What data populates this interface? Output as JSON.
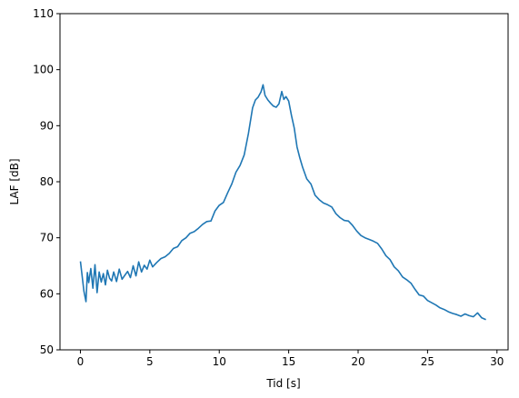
{
  "chart_data": {
    "type": "line",
    "title": "",
    "xlabel": "Tid [s]",
    "ylabel": "LAF [dB]",
    "xlim": [
      -1.47,
      30.8
    ],
    "ylim": [
      50,
      110
    ],
    "xticks": [
      0,
      5,
      10,
      15,
      20,
      25,
      30
    ],
    "yticks": [
      50,
      60,
      70,
      80,
      90,
      100,
      110
    ],
    "grid": false,
    "legend": "none",
    "series": [
      {
        "color": "#1f77b4",
        "x": [
          0.0,
          0.25,
          0.4,
          0.5,
          0.6,
          0.75,
          0.9,
          1.05,
          1.2,
          1.35,
          1.5,
          1.65,
          1.8,
          1.95,
          2.1,
          2.25,
          2.4,
          2.6,
          2.8,
          3.0,
          3.2,
          3.4,
          3.6,
          3.8,
          4.0,
          4.2,
          4.4,
          4.6,
          4.8,
          5.0,
          5.2,
          5.5,
          5.8,
          6.1,
          6.4,
          6.7,
          7.0,
          7.3,
          7.6,
          7.9,
          8.2,
          8.5,
          8.8,
          9.1,
          9.4,
          9.7,
          10.0,
          10.3,
          10.6,
          10.9,
          11.2,
          11.5,
          11.8,
          12.1,
          12.4,
          12.6,
          12.8,
          13.0,
          13.15,
          13.3,
          13.5,
          13.7,
          13.9,
          14.1,
          14.3,
          14.5,
          14.65,
          14.8,
          15.0,
          15.2,
          15.4,
          15.6,
          15.8,
          16.0,
          16.3,
          16.6,
          16.9,
          17.2,
          17.5,
          17.8,
          18.1,
          18.4,
          18.7,
          19.0,
          19.3,
          19.6,
          19.9,
          20.2,
          20.5,
          20.8,
          21.1,
          21.4,
          21.7,
          22.0,
          22.3,
          22.6,
          22.9,
          23.2,
          23.5,
          23.8,
          24.1,
          24.4,
          24.7,
          25.0,
          25.3,
          25.6,
          25.9,
          26.2,
          26.5,
          26.8,
          27.1,
          27.4,
          27.7,
          28.0,
          28.3,
          28.6,
          28.9,
          29.2
        ],
        "values": [
          65.8,
          60.5,
          58.6,
          63.8,
          62.0,
          64.5,
          61.0,
          65.2,
          60.2,
          63.9,
          62.1,
          63.6,
          61.6,
          64.2,
          62.8,
          62.3,
          63.9,
          62.2,
          64.4,
          62.6,
          63.3,
          64.0,
          62.9,
          65.0,
          63.2,
          65.7,
          63.9,
          65.1,
          64.4,
          66.0,
          64.8,
          65.6,
          66.3,
          66.6,
          67.2,
          68.1,
          68.4,
          69.5,
          70.0,
          70.8,
          71.1,
          71.7,
          72.4,
          72.9,
          73.0,
          74.8,
          75.8,
          76.3,
          78.0,
          79.6,
          81.7,
          82.9,
          84.8,
          88.6,
          93.2,
          94.6,
          95.1,
          96.0,
          97.3,
          95.4,
          94.6,
          94.0,
          93.5,
          93.3,
          93.9,
          96.1,
          94.7,
          95.2,
          94.4,
          91.8,
          89.6,
          86.2,
          84.3,
          82.6,
          80.5,
          79.6,
          77.6,
          76.8,
          76.2,
          75.9,
          75.5,
          74.3,
          73.6,
          73.1,
          73.0,
          72.2,
          71.2,
          70.4,
          70.0,
          69.7,
          69.4,
          69.0,
          68.0,
          66.8,
          66.1,
          64.8,
          64.1,
          63.0,
          62.5,
          61.9,
          60.8,
          59.8,
          59.6,
          58.8,
          58.4,
          58.0,
          57.5,
          57.2,
          56.8,
          56.5,
          56.3,
          56.0,
          56.4,
          56.1,
          55.9,
          56.6,
          55.7,
          55.4
        ]
      }
    ]
  }
}
